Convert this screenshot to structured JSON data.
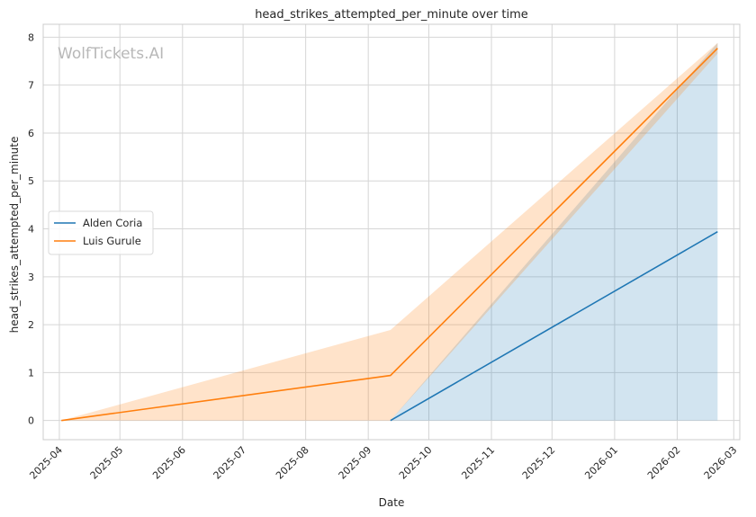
{
  "chart_data": {
    "type": "line",
    "title": "head_strikes_attempted_per_minute over time",
    "xlabel": "Date",
    "ylabel": "head_strikes_attempted_per_minute",
    "watermark": "WolfTickets.AI",
    "grid": true,
    "legend_position": "center-left",
    "xlim": [
      "2025-03-24",
      "2026-03-04"
    ],
    "ylim": [
      -0.4,
      8.27
    ],
    "x_ticks": [
      "2025-04",
      "2025-05",
      "2025-06",
      "2025-07",
      "2025-08",
      "2025-09",
      "2025-10",
      "2025-11",
      "2025-12",
      "2026-01",
      "2026-02",
      "2026-03"
    ],
    "y_ticks": [
      "0",
      "1",
      "2",
      "3",
      "4",
      "5",
      "6",
      "7",
      "8"
    ],
    "y_tick_values": [
      0,
      1,
      2,
      3,
      4,
      5,
      6,
      7,
      8
    ],
    "series": [
      {
        "name": "Alden Coria",
        "color": "#1f77b4",
        "x": [
          "2025-09-12",
          "2026-02-21"
        ],
        "y": [
          0,
          3.94
        ],
        "band_lower": [
          0,
          0
        ],
        "band_upper": [
          0,
          7.88
        ]
      },
      {
        "name": "Luis Gurule",
        "color": "#ff7f0e",
        "x": [
          "2025-04-02",
          "2025-09-12",
          "2026-02-21"
        ],
        "y": [
          0,
          0.94,
          7.77
        ],
        "band_lower": [
          0,
          0,
          7.66
        ],
        "band_upper": [
          0,
          1.89,
          7.88
        ]
      }
    ]
  }
}
